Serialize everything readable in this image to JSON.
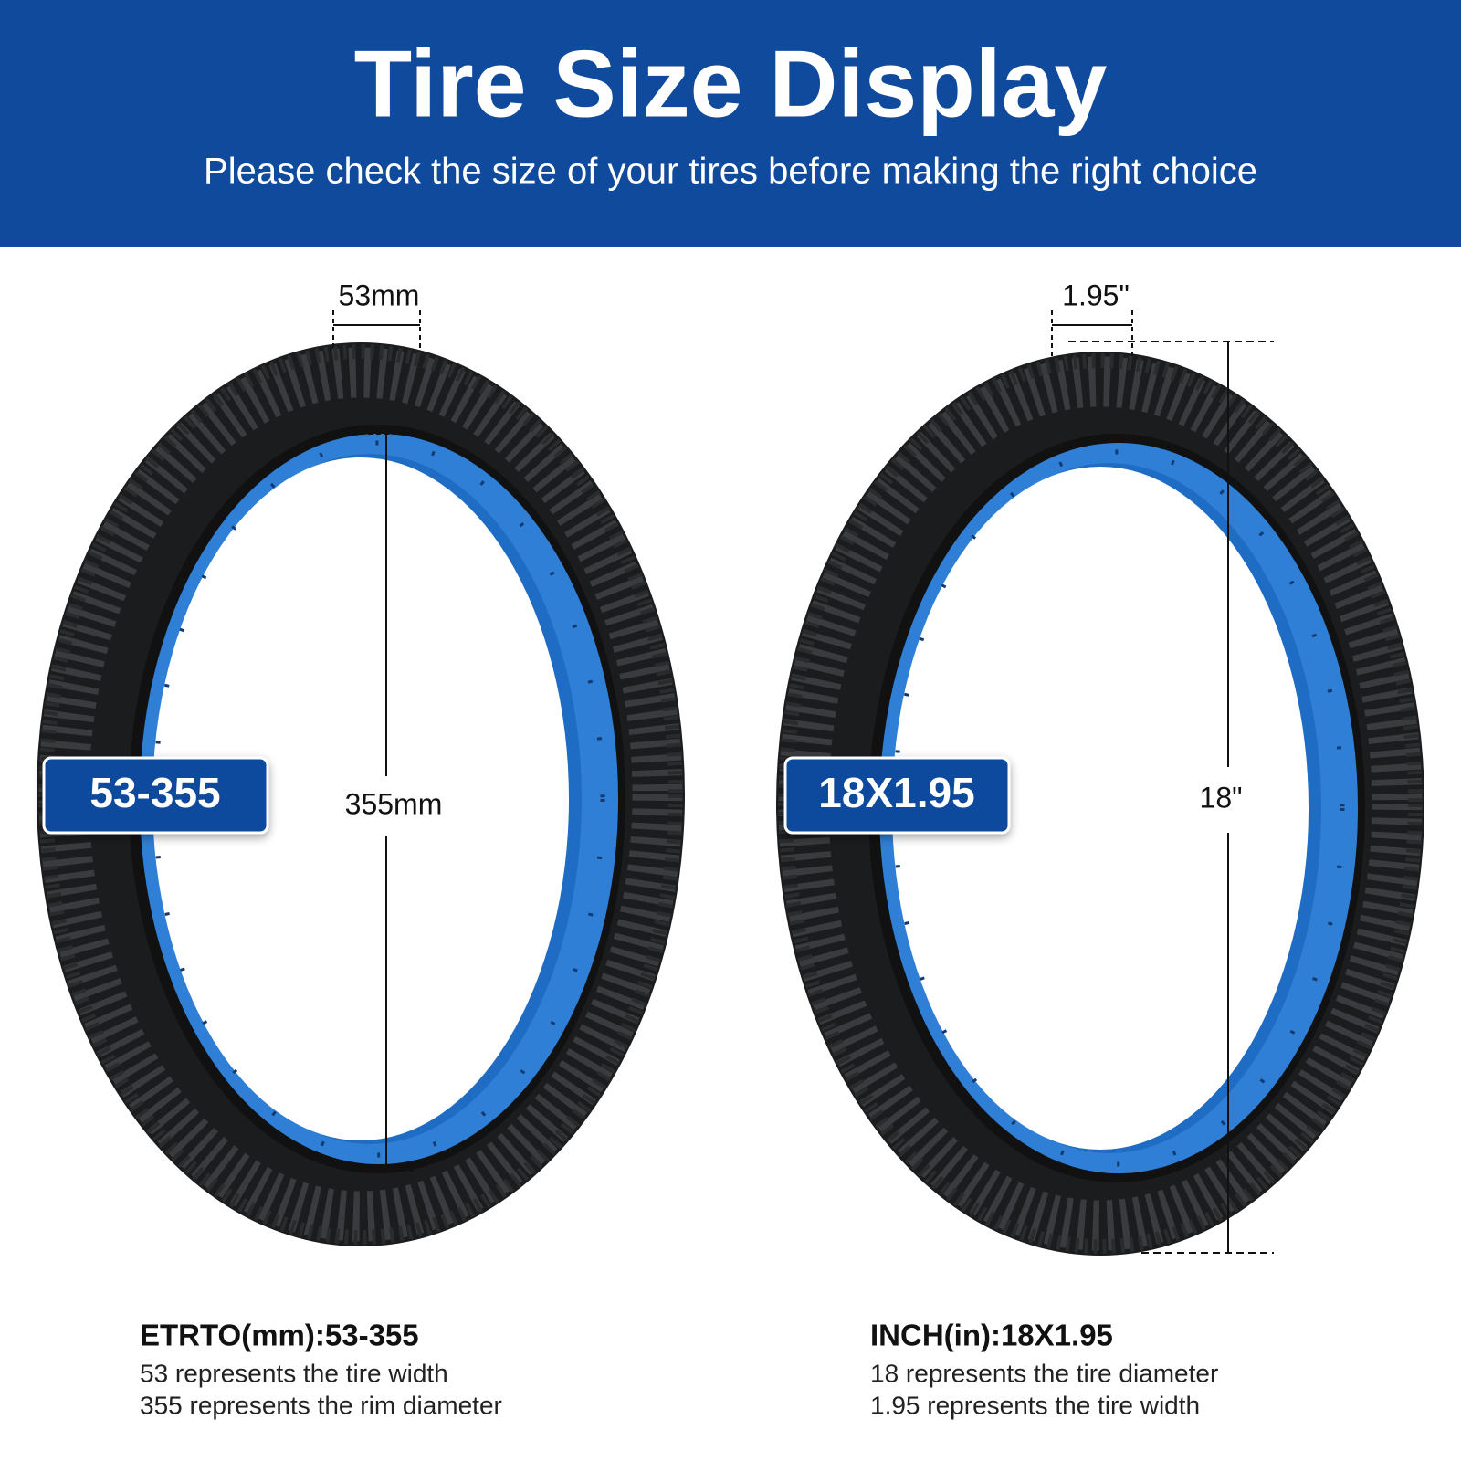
{
  "header": {
    "title": "Tire Size Display",
    "subtitle": "Please check the size of your tires before making the right choice"
  },
  "panels": [
    {
      "badge": "53-355",
      "width_label": "53mm",
      "diameter_label": "355mm",
      "heading": "ETRTO(mm):53-355",
      "lines": [
        "53 represents the tire width",
        "355 represents the rim diameter"
      ]
    },
    {
      "badge": "18X1.95",
      "width_label": "1.95\"",
      "diameter_label": "18\"",
      "heading": "INCH(in):18X1.95",
      "lines": [
        "18 represents the tire diameter",
        "1.95 represents the tire width"
      ]
    }
  ]
}
